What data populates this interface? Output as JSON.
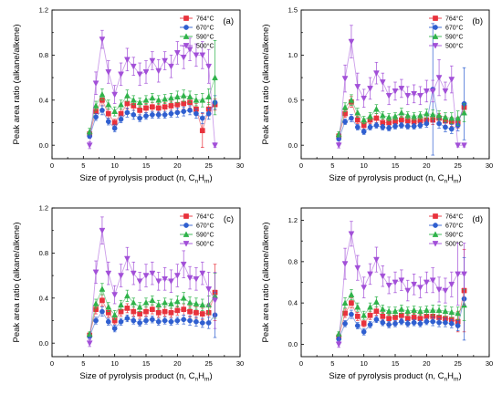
{
  "figure": {
    "x_label_prefix": "Size of pyrolysis product (n, C",
    "x_label_sub_n": "n",
    "x_label_mid": "H",
    "x_label_sub_m": "m",
    "x_label_suffix": ")"
  },
  "chart_data": [
    {
      "type": "scatter",
      "panel_label": "(a)",
      "xlabel": "Size of pyrolysis product (n, CnHm)",
      "ylabel": "Peak area ratio (alkane/alkene)",
      "xlim": [
        0,
        30
      ],
      "ylim": [
        -0.12,
        1.2
      ],
      "xticks": [
        0,
        5,
        10,
        15,
        20,
        25,
        30
      ],
      "yticks": [
        0.0,
        0.4,
        0.8,
        1.2
      ],
      "ytick_labels": [
        "0.0",
        "0.4",
        "0.8",
        "1.2"
      ],
      "legend_position": "top-right",
      "x": [
        6,
        7,
        8,
        9,
        10,
        11,
        12,
        13,
        14,
        15,
        16,
        17,
        18,
        19,
        20,
        21,
        22,
        23,
        24,
        25,
        26
      ],
      "series": [
        {
          "name": "764°C",
          "color": "#e8323c",
          "marker": "square",
          "values": [
            0.1,
            0.3,
            0.4,
            0.28,
            0.2,
            0.28,
            0.37,
            0.35,
            0.31,
            0.33,
            0.34,
            0.33,
            0.34,
            0.35,
            0.36,
            0.37,
            0.38,
            0.32,
            0.13,
            0.32,
            0.36
          ],
          "errors": [
            0.02,
            0.04,
            0.05,
            0.04,
            0.03,
            0.04,
            0.05,
            0.04,
            0.04,
            0.04,
            0.04,
            0.04,
            0.04,
            0.04,
            0.05,
            0.05,
            0.05,
            0.05,
            0.15,
            0.06,
            0.05
          ]
        },
        {
          "name": "670°C",
          "color": "#2f5fd0",
          "marker": "circle",
          "values": [
            0.08,
            0.25,
            0.31,
            0.21,
            0.15,
            0.23,
            0.29,
            0.27,
            0.24,
            0.26,
            0.27,
            0.27,
            0.27,
            0.28,
            0.29,
            0.3,
            0.31,
            0.28,
            0.24,
            0.28,
            0.38
          ],
          "errors": [
            0.02,
            0.03,
            0.04,
            0.03,
            0.03,
            0.03,
            0.04,
            0.04,
            0.03,
            0.03,
            0.03,
            0.03,
            0.03,
            0.03,
            0.04,
            0.04,
            0.04,
            0.04,
            0.05,
            0.05,
            0.06
          ]
        },
        {
          "name": "590°C",
          "color": "#2fb34a",
          "marker": "triangle-up",
          "values": [
            0.12,
            0.35,
            0.45,
            0.36,
            0.3,
            0.36,
            0.44,
            0.4,
            0.38,
            0.4,
            0.42,
            0.4,
            0.41,
            0.42,
            0.43,
            0.44,
            0.43,
            0.4,
            0.4,
            0.43,
            0.6
          ],
          "errors": [
            0.03,
            0.04,
            0.05,
            0.04,
            0.04,
            0.04,
            0.05,
            0.04,
            0.04,
            0.04,
            0.04,
            0.04,
            0.04,
            0.04,
            0.05,
            0.05,
            0.05,
            0.05,
            0.06,
            0.07,
            0.33
          ]
        },
        {
          "name": "500°C",
          "color": "#a24fd8",
          "marker": "triangle-down",
          "values": [
            0.0,
            0.55,
            0.94,
            0.65,
            0.45,
            0.63,
            0.76,
            0.7,
            0.63,
            0.65,
            0.75,
            0.66,
            0.75,
            0.7,
            0.82,
            0.78,
            0.85,
            0.8,
            0.8,
            0.7,
            0.0
          ],
          "errors": [
            0.03,
            0.1,
            0.08,
            0.1,
            0.08,
            0.1,
            0.1,
            0.08,
            0.1,
            0.1,
            0.08,
            0.1,
            0.08,
            0.1,
            0.1,
            0.1,
            0.1,
            0.1,
            0.12,
            0.15,
            0.02
          ]
        }
      ]
    },
    {
      "type": "scatter",
      "panel_label": "(b)",
      "xlabel": "Size of pyrolysis product (n, CnHm)",
      "ylabel": "Peak area ratio (alkane/alkene)",
      "xlim": [
        0,
        30
      ],
      "ylim": [
        -0.15,
        1.5
      ],
      "xticks": [
        0,
        5,
        10,
        15,
        20,
        25,
        30
      ],
      "yticks": [
        0.0,
        0.5,
        1.0,
        1.5
      ],
      "ytick_labels": [
        "0.0",
        "0.5",
        "1.0",
        "1.5"
      ],
      "legend_position": "top-right",
      "x": [
        6,
        7,
        8,
        9,
        10,
        11,
        12,
        13,
        14,
        15,
        16,
        17,
        18,
        19,
        20,
        21,
        22,
        23,
        24,
        25,
        26
      ],
      "series": [
        {
          "name": "764°C",
          "color": "#e8323c",
          "marker": "square",
          "values": [
            0.1,
            0.35,
            0.48,
            0.28,
            0.22,
            0.28,
            0.3,
            0.25,
            0.25,
            0.26,
            0.28,
            0.27,
            0.26,
            0.27,
            0.28,
            0.28,
            0.3,
            0.27,
            0.26,
            0.25,
            0.42
          ],
          "errors": [
            0.03,
            0.04,
            0.06,
            0.04,
            0.04,
            0.04,
            0.05,
            0.04,
            0.04,
            0.04,
            0.04,
            0.04,
            0.04,
            0.04,
            0.05,
            0.05,
            0.05,
            0.05,
            0.05,
            0.06,
            0.05
          ]
        },
        {
          "name": "670°C",
          "color": "#2f5fd0",
          "marker": "circle",
          "values": [
            0.07,
            0.26,
            0.3,
            0.2,
            0.15,
            0.2,
            0.22,
            0.2,
            0.19,
            0.21,
            0.22,
            0.21,
            0.21,
            0.22,
            0.24,
            0.62,
            0.24,
            0.2,
            0.18,
            0.22,
            0.46
          ],
          "errors": [
            0.02,
            0.03,
            0.04,
            0.03,
            0.03,
            0.03,
            0.03,
            0.03,
            0.03,
            0.03,
            0.03,
            0.03,
            0.03,
            0.03,
            0.04,
            0.73,
            0.05,
            0.05,
            0.05,
            0.06,
            0.4
          ]
        },
        {
          "name": "590°C",
          "color": "#2fb34a",
          "marker": "triangle-up",
          "values": [
            0.12,
            0.42,
            0.5,
            0.36,
            0.28,
            0.32,
            0.4,
            0.33,
            0.31,
            0.32,
            0.36,
            0.33,
            0.32,
            0.33,
            0.35,
            0.34,
            0.33,
            0.31,
            0.3,
            0.3,
            0.36
          ],
          "errors": [
            0.03,
            0.05,
            0.06,
            0.05,
            0.04,
            0.04,
            0.05,
            0.04,
            0.04,
            0.04,
            0.05,
            0.04,
            0.04,
            0.04,
            0.05,
            0.05,
            0.05,
            0.05,
            0.06,
            0.08,
            0.1
          ]
        },
        {
          "name": "500°C",
          "color": "#a24fd8",
          "marker": "triangle-down",
          "values": [
            0.0,
            0.74,
            1.15,
            0.65,
            0.52,
            0.63,
            0.8,
            0.7,
            0.55,
            0.6,
            0.63,
            0.55,
            0.57,
            0.55,
            0.6,
            0.6,
            0.75,
            0.6,
            0.73,
            0.0,
            0.0
          ],
          "errors": [
            0.03,
            0.15,
            0.18,
            0.15,
            0.1,
            0.12,
            0.12,
            0.1,
            0.1,
            0.1,
            0.1,
            0.1,
            0.1,
            0.1,
            0.12,
            0.12,
            0.2,
            0.1,
            0.15,
            0.02,
            0.02
          ]
        }
      ]
    },
    {
      "type": "scatter",
      "panel_label": "(c)",
      "xlabel": "Size of pyrolysis product (n, CnHm)",
      "ylabel": "Peak area ratio (alkane/alkene)",
      "xlim": [
        0,
        30
      ],
      "ylim": [
        -0.12,
        1.2
      ],
      "xticks": [
        0,
        5,
        10,
        15,
        20,
        25,
        30
      ],
      "yticks": [
        0.0,
        0.4,
        0.8,
        1.2
      ],
      "ytick_labels": [
        "0.0",
        "0.4",
        "0.8",
        "1.2"
      ],
      "legend_position": "top-right",
      "x": [
        6,
        7,
        8,
        9,
        10,
        11,
        12,
        13,
        14,
        15,
        16,
        17,
        18,
        19,
        20,
        21,
        22,
        23,
        24,
        25,
        26
      ],
      "series": [
        {
          "name": "764°C",
          "color": "#e8323c",
          "marker": "square",
          "values": [
            0.07,
            0.3,
            0.38,
            0.27,
            0.2,
            0.28,
            0.31,
            0.28,
            0.26,
            0.28,
            0.3,
            0.27,
            0.28,
            0.27,
            0.29,
            0.3,
            0.28,
            0.27,
            0.26,
            0.27,
            0.45
          ],
          "errors": [
            0.02,
            0.04,
            0.05,
            0.04,
            0.03,
            0.04,
            0.04,
            0.04,
            0.04,
            0.04,
            0.04,
            0.04,
            0.04,
            0.04,
            0.04,
            0.05,
            0.05,
            0.05,
            0.05,
            0.08,
            0.25
          ]
        },
        {
          "name": "670°C",
          "color": "#2f5fd0",
          "marker": "circle",
          "values": [
            0.06,
            0.2,
            0.28,
            0.19,
            0.13,
            0.19,
            0.22,
            0.2,
            0.18,
            0.2,
            0.21,
            0.19,
            0.2,
            0.19,
            0.2,
            0.21,
            0.2,
            0.19,
            0.18,
            0.18,
            0.25
          ],
          "errors": [
            0.02,
            0.03,
            0.04,
            0.03,
            0.03,
            0.03,
            0.03,
            0.03,
            0.03,
            0.03,
            0.03,
            0.03,
            0.03,
            0.03,
            0.03,
            0.04,
            0.04,
            0.04,
            0.04,
            0.05,
            0.2
          ]
        },
        {
          "name": "590°C",
          "color": "#2fb34a",
          "marker": "triangle-up",
          "values": [
            0.08,
            0.35,
            0.48,
            0.32,
            0.25,
            0.34,
            0.42,
            0.36,
            0.32,
            0.36,
            0.38,
            0.34,
            0.36,
            0.35,
            0.37,
            0.4,
            0.36,
            0.35,
            0.34,
            0.34,
            0.42
          ],
          "errors": [
            0.02,
            0.04,
            0.05,
            0.04,
            0.04,
            0.04,
            0.05,
            0.04,
            0.04,
            0.04,
            0.04,
            0.04,
            0.04,
            0.04,
            0.05,
            0.05,
            0.05,
            0.05,
            0.05,
            0.08,
            0.2
          ]
        },
        {
          "name": "500°C",
          "color": "#a24fd8",
          "marker": "triangle-down",
          "values": [
            0.0,
            0.63,
            1.0,
            0.62,
            0.43,
            0.6,
            0.75,
            0.62,
            0.55,
            0.6,
            0.62,
            0.55,
            0.57,
            0.55,
            0.6,
            0.7,
            0.58,
            0.57,
            0.62,
            0.48,
            0.38
          ],
          "errors": [
            0.03,
            0.1,
            0.12,
            0.1,
            0.08,
            0.1,
            0.1,
            0.1,
            0.08,
            0.1,
            0.1,
            0.08,
            0.1,
            0.1,
            0.1,
            0.12,
            0.1,
            0.1,
            0.1,
            0.15,
            0.25
          ]
        }
      ]
    },
    {
      "type": "scatter",
      "panel_label": "(d)",
      "xlabel": "Size of pyrolysis product (n, CnHm)",
      "ylabel": "Peak area ratio (alkane/alkene)",
      "xlim": [
        0,
        30
      ],
      "ylim": [
        -0.12,
        1.32
      ],
      "xticks": [
        0,
        5,
        10,
        15,
        20,
        25,
        30
      ],
      "yticks": [
        0.0,
        0.4,
        0.8,
        1.2
      ],
      "ytick_labels": [
        "0.0",
        "0.4",
        "0.8",
        "1.2"
      ],
      "legend_position": "top-right",
      "x": [
        6,
        7,
        8,
        9,
        10,
        11,
        12,
        13,
        14,
        15,
        16,
        17,
        18,
        19,
        20,
        21,
        22,
        23,
        24,
        25,
        26
      ],
      "series": [
        {
          "name": "764°C",
          "color": "#e8323c",
          "marker": "square",
          "values": [
            0.07,
            0.3,
            0.4,
            0.27,
            0.2,
            0.28,
            0.32,
            0.27,
            0.25,
            0.26,
            0.28,
            0.25,
            0.26,
            0.25,
            0.27,
            0.27,
            0.26,
            0.25,
            0.24,
            0.22,
            0.52
          ],
          "errors": [
            0.02,
            0.04,
            0.05,
            0.04,
            0.03,
            0.04,
            0.04,
            0.04,
            0.04,
            0.04,
            0.04,
            0.04,
            0.04,
            0.04,
            0.04,
            0.05,
            0.05,
            0.05,
            0.05,
            0.1,
            0.4
          ]
        },
        {
          "name": "670°C",
          "color": "#2f5fd0",
          "marker": "circle",
          "values": [
            0.05,
            0.2,
            0.29,
            0.18,
            0.12,
            0.19,
            0.24,
            0.21,
            0.19,
            0.2,
            0.22,
            0.2,
            0.21,
            0.2,
            0.22,
            0.22,
            0.21,
            0.21,
            0.2,
            0.18,
            0.44
          ],
          "errors": [
            0.02,
            0.03,
            0.04,
            0.03,
            0.03,
            0.03,
            0.03,
            0.03,
            0.03,
            0.03,
            0.03,
            0.03,
            0.03,
            0.03,
            0.03,
            0.04,
            0.04,
            0.04,
            0.04,
            0.05,
            0.4
          ]
        },
        {
          "name": "590°C",
          "color": "#2fb34a",
          "marker": "triangle-up",
          "values": [
            0.1,
            0.4,
            0.48,
            0.36,
            0.28,
            0.36,
            0.41,
            0.34,
            0.32,
            0.32,
            0.34,
            0.32,
            0.33,
            0.32,
            0.33,
            0.33,
            0.33,
            0.32,
            0.31,
            0.3,
            0.38
          ],
          "errors": [
            0.02,
            0.05,
            0.05,
            0.04,
            0.04,
            0.04,
            0.05,
            0.04,
            0.04,
            0.04,
            0.04,
            0.04,
            0.04,
            0.04,
            0.04,
            0.05,
            0.05,
            0.05,
            0.05,
            0.06,
            0.15
          ]
        },
        {
          "name": "500°C",
          "color": "#a24fd8",
          "marker": "triangle-down",
          "values": [
            0.0,
            0.78,
            1.07,
            0.74,
            0.55,
            0.68,
            0.82,
            0.66,
            0.57,
            0.6,
            0.62,
            0.52,
            0.58,
            0.55,
            0.6,
            0.62,
            0.53,
            0.52,
            0.58,
            0.68,
            0.68
          ],
          "errors": [
            0.03,
            0.15,
            0.12,
            0.12,
            0.1,
            0.1,
            0.12,
            0.1,
            0.08,
            0.1,
            0.1,
            0.1,
            0.1,
            0.1,
            0.1,
            0.12,
            0.12,
            0.12,
            0.12,
            0.3,
            0.3
          ]
        }
      ]
    }
  ]
}
